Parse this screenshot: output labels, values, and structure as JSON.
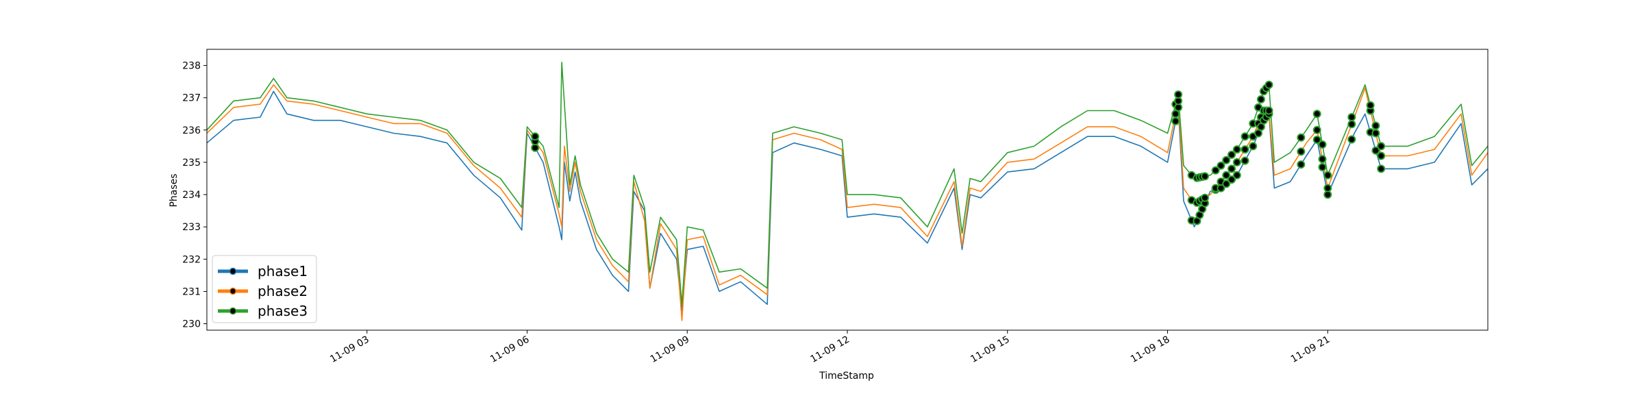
{
  "chart_data": {
    "type": "line",
    "title": "",
    "xlabel": "TimeStamp",
    "ylabel": "Phases",
    "xlim": [
      "2021-11-09 00:00",
      "2021-11-10 00:00"
    ],
    "ylim": [
      229.8,
      238.5
    ],
    "grid": false,
    "legend_position": "lower-left",
    "x_ticks": [
      {
        "value": 3,
        "label": "11-09 03"
      },
      {
        "value": 6,
        "label": "11-09 06"
      },
      {
        "value": 9,
        "label": "11-09 09"
      },
      {
        "value": 12,
        "label": "11-09 12"
      },
      {
        "value": 15,
        "label": "11-09 15"
      },
      {
        "value": 18,
        "label": "11-09 18"
      },
      {
        "value": 21,
        "label": "11-09 21"
      }
    ],
    "y_ticks": [
      {
        "value": 230,
        "label": "230"
      },
      {
        "value": 231,
        "label": "231"
      },
      {
        "value": 232,
        "label": "232"
      },
      {
        "value": 233,
        "label": "233"
      },
      {
        "value": 234,
        "label": "234"
      },
      {
        "value": 235,
        "label": "235"
      },
      {
        "value": 236,
        "label": "236"
      },
      {
        "value": 237,
        "label": "237"
      },
      {
        "value": 238,
        "label": "238"
      }
    ],
    "x_hours": [
      0.0,
      0.5,
      1.0,
      1.25,
      1.5,
      2.0,
      2.5,
      3.0,
      3.5,
      4.0,
      4.5,
      5.0,
      5.5,
      5.9,
      6.0,
      6.3,
      6.6,
      6.65,
      6.7,
      6.8,
      6.9,
      7.0,
      7.3,
      7.6,
      7.9,
      8.0,
      8.2,
      8.3,
      8.5,
      8.8,
      8.9,
      9.0,
      9.3,
      9.6,
      10.0,
      10.5,
      10.6,
      11.0,
      11.5,
      11.9,
      12.0,
      12.5,
      13.0,
      13.5,
      14.0,
      14.15,
      14.3,
      14.5,
      15.0,
      15.5,
      16.0,
      16.5,
      17.0,
      17.5,
      18.0,
      18.2,
      18.3,
      18.5,
      18.8,
      19.0,
      19.3,
      19.6,
      19.8,
      19.9,
      20.0,
      20.3,
      20.6,
      20.8,
      21.0,
      21.5,
      21.7,
      22.0,
      22.5,
      23.0,
      23.5,
      23.7,
      24.0
    ],
    "series": [
      {
        "name": "phase1",
        "color": "#1f77b4",
        "values": [
          235.6,
          236.3,
          236.4,
          237.2,
          236.5,
          236.3,
          236.3,
          236.1,
          235.9,
          235.8,
          235.6,
          234.6,
          233.9,
          232.9,
          235.9,
          235.0,
          233.0,
          232.6,
          235.0,
          233.8,
          234.7,
          233.8,
          232.3,
          231.5,
          231.0,
          234.1,
          233.5,
          231.1,
          232.8,
          232.0,
          230.4,
          232.3,
          232.4,
          231.0,
          231.3,
          230.6,
          235.3,
          235.6,
          235.4,
          235.2,
          233.3,
          233.4,
          233.3,
          232.5,
          234.2,
          232.3,
          234.0,
          233.9,
          234.7,
          234.8,
          235.3,
          235.8,
          235.8,
          235.5,
          235.0,
          236.7,
          233.8,
          233.0,
          234.1,
          234.2,
          234.6,
          235.5,
          236.3,
          236.5,
          234.2,
          234.4,
          235.2,
          235.7,
          234.0,
          235.9,
          236.5,
          234.8,
          234.8,
          235.0,
          236.2,
          234.3,
          234.8
        ]
      },
      {
        "name": "phase2",
        "color": "#ff7f0e",
        "values": [
          235.9,
          236.7,
          236.8,
          237.4,
          236.9,
          236.8,
          236.6,
          236.4,
          236.2,
          236.2,
          235.9,
          234.9,
          234.2,
          233.3,
          236.0,
          235.3,
          233.4,
          233.0,
          235.5,
          234.1,
          235.0,
          234.1,
          232.6,
          231.8,
          231.3,
          234.4,
          233.2,
          231.1,
          233.1,
          232.3,
          230.1,
          232.6,
          232.7,
          231.2,
          231.5,
          230.9,
          235.7,
          235.9,
          235.7,
          235.4,
          233.6,
          233.7,
          233.6,
          232.7,
          234.4,
          232.4,
          234.2,
          234.1,
          235.0,
          235.1,
          235.6,
          236.1,
          236.1,
          235.8,
          235.3,
          236.9,
          234.2,
          233.7,
          234.0,
          234.4,
          235.0,
          235.8,
          236.6,
          236.6,
          234.6,
          234.8,
          235.6,
          236.0,
          234.2,
          236.4,
          237.3,
          235.2,
          235.2,
          235.4,
          236.5,
          234.6,
          235.3
        ]
      },
      {
        "name": "phase3",
        "color": "#2ca02c",
        "values": [
          236.0,
          236.9,
          237.0,
          237.6,
          237.0,
          236.9,
          236.7,
          236.5,
          236.4,
          236.3,
          236.0,
          235.0,
          234.5,
          233.6,
          236.1,
          235.5,
          233.6,
          238.1,
          236.8,
          234.3,
          235.2,
          234.3,
          232.8,
          232.0,
          231.6,
          234.6,
          233.6,
          231.6,
          233.3,
          232.6,
          230.6,
          233.0,
          232.9,
          231.6,
          231.7,
          231.1,
          235.9,
          236.1,
          235.9,
          235.7,
          234.0,
          234.0,
          233.9,
          233.0,
          234.8,
          232.8,
          234.5,
          234.4,
          235.3,
          235.5,
          236.1,
          236.6,
          236.6,
          236.3,
          235.9,
          237.1,
          234.9,
          234.5,
          234.6,
          234.9,
          235.4,
          236.2,
          237.2,
          237.4,
          235.0,
          235.3,
          236.0,
          236.5,
          234.6,
          236.6,
          237.4,
          235.5,
          235.5,
          235.8,
          236.8,
          234.9,
          235.5
        ]
      }
    ],
    "anomaly_hours": [
      6.15,
      18.15,
      18.2,
      18.45,
      18.55,
      18.6,
      18.65,
      18.7,
      18.9,
      19.0,
      19.1,
      19.2,
      19.3,
      19.45,
      19.6,
      19.7,
      19.75,
      19.8,
      19.85,
      19.9,
      20.5,
      20.8,
      20.9,
      21.0,
      21.45,
      21.8,
      21.9,
      22.0
    ]
  }
}
